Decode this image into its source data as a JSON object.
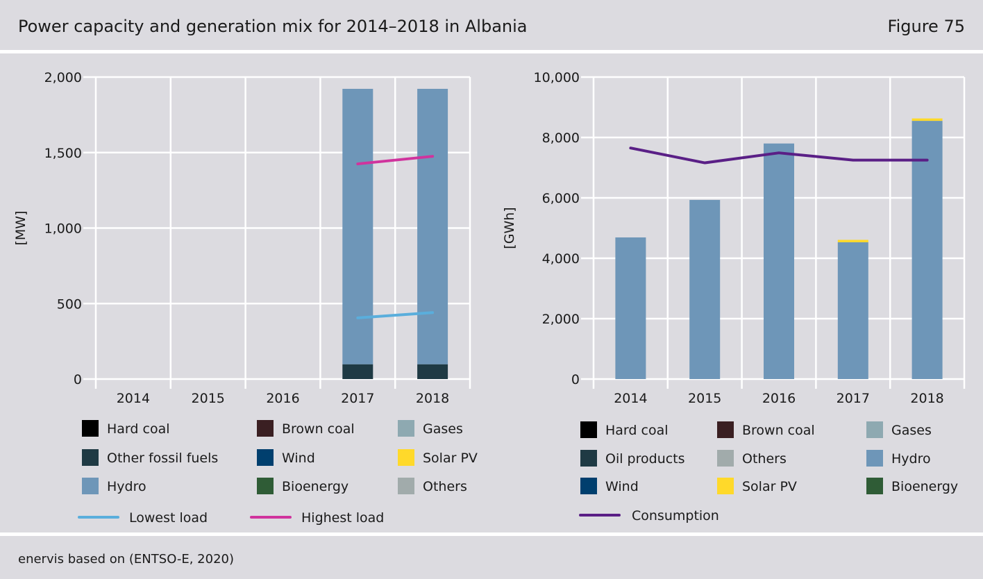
{
  "header": {
    "title": "Power capacity and generation mix for 2014–2018 in Albania",
    "figure": "Figure 75"
  },
  "footer": {
    "source": "enervis based on (ENTSO-E, 2020)"
  },
  "colors": {
    "hard_coal": "#000000",
    "brown_coal": "#3a1f22",
    "gases": "#8ea9b1",
    "other_fossil": "#1f3a44",
    "wind": "#003f6e",
    "solar": "#ffd92a",
    "hydro": "#6e96b8",
    "bioenergy": "#2f5c36",
    "others": "#a1abab",
    "lowest_load": "#5aaedc",
    "highest_load": "#d0339d",
    "consumption": "#5a1f86"
  },
  "chart_data": [
    {
      "type": "bar",
      "ylabel": "[MW]",
      "ylim": [
        0,
        2000
      ],
      "yticks": [
        0,
        500,
        1000,
        1500,
        2000
      ],
      "ytick_labels": [
        "0",
        "500",
        "1,000",
        "1,500",
        "2,000"
      ],
      "categories": [
        "2014",
        "2015",
        "2016",
        "2017",
        "2018"
      ],
      "grid": true,
      "series": [
        {
          "name": "Other fossil fuels",
          "color_key": "other_fossil",
          "values": [
            0,
            0,
            0,
            98,
            98
          ]
        },
        {
          "name": "Hydro",
          "color_key": "hydro",
          "values": [
            0,
            0,
            0,
            1824,
            1824
          ]
        }
      ],
      "lines": [
        {
          "name": "Lowest load",
          "color_key": "lowest_load",
          "values": [
            null,
            null,
            null,
            405,
            440
          ]
        },
        {
          "name": "Highest load",
          "color_key": "highest_load",
          "values": [
            null,
            null,
            null,
            1425,
            1475
          ]
        }
      ],
      "legend": {
        "items": [
          {
            "label": "Hard coal",
            "color_key": "hard_coal"
          },
          {
            "label": "Brown coal",
            "color_key": "brown_coal"
          },
          {
            "label": "Gases",
            "color_key": "gases"
          },
          {
            "label": "Other fossil fuels",
            "color_key": "other_fossil"
          },
          {
            "label": "Wind",
            "color_key": "wind"
          },
          {
            "label": "Solar PV",
            "color_key": "solar"
          },
          {
            "label": "Hydro",
            "color_key": "hydro"
          },
          {
            "label": "Bioenergy",
            "color_key": "bioenergy"
          },
          {
            "label": "Others",
            "color_key": "others"
          }
        ],
        "line_items": [
          {
            "label": "Lowest load",
            "color_key": "lowest_load"
          },
          {
            "label": "Highest load",
            "color_key": "highest_load"
          }
        ]
      }
    },
    {
      "type": "bar",
      "ylabel": "[GWh]",
      "ylim": [
        0,
        10000
      ],
      "yticks": [
        0,
        2000,
        4000,
        6000,
        8000,
        10000
      ],
      "ytick_labels": [
        "0",
        "2,000",
        "4,000",
        "6,000",
        "8,000",
        "10,000"
      ],
      "categories": [
        "2014",
        "2015",
        "2016",
        "2017",
        "2018"
      ],
      "grid": true,
      "series": [
        {
          "name": "Hydro",
          "color_key": "hydro",
          "values": [
            4690,
            5930,
            7800,
            4530,
            8550
          ]
        },
        {
          "name": "Solar PV",
          "color_key": "solar",
          "values": [
            0,
            0,
            0,
            80,
            80
          ]
        }
      ],
      "lines": [
        {
          "name": "Consumption",
          "color_key": "consumption",
          "values": [
            7650,
            7160,
            7490,
            7250,
            7250
          ]
        }
      ],
      "legend": {
        "items": [
          {
            "label": "Hard coal",
            "color_key": "hard_coal"
          },
          {
            "label": "Brown coal",
            "color_key": "brown_coal"
          },
          {
            "label": "Gases",
            "color_key": "gases"
          },
          {
            "label": "Oil products",
            "color_key": "other_fossil"
          },
          {
            "label": "Others",
            "color_key": "others"
          },
          {
            "label": "Hydro",
            "color_key": "hydro"
          },
          {
            "label": "Wind",
            "color_key": "wind"
          },
          {
            "label": "Solar PV",
            "color_key": "solar"
          },
          {
            "label": "Bioenergy",
            "color_key": "bioenergy"
          }
        ],
        "line_items": [
          {
            "label": "Consumption",
            "color_key": "consumption"
          }
        ]
      }
    }
  ]
}
